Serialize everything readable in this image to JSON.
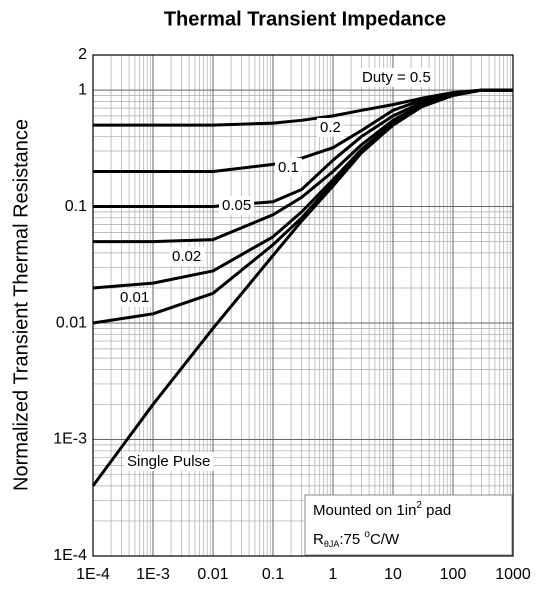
{
  "chart_data": {
    "type": "line",
    "title": "Thermal Transient Impedance",
    "y_label": "Normalized Transient Thermal Resistance",
    "x": [
      0.0001,
      0.001,
      0.01,
      0.1,
      0.3,
      1,
      3,
      10,
      30,
      100,
      300,
      1000
    ],
    "series": [
      {
        "name": "Duty = 0.5",
        "color": "#000000",
        "values": [
          0.5,
          0.5,
          0.5,
          0.52,
          0.55,
          0.6,
          0.67,
          0.75,
          0.85,
          0.95,
          1,
          1
        ]
      },
      {
        "name": "0.2",
        "color": "#000000",
        "values": [
          0.2,
          0.2,
          0.2,
          0.23,
          0.26,
          0.32,
          0.45,
          0.67,
          0.82,
          0.93,
          1,
          1
        ]
      },
      {
        "name": "0.1",
        "color": "#000000",
        "values": [
          0.1,
          0.1,
          0.1,
          0.11,
          0.14,
          0.25,
          0.4,
          0.6,
          0.78,
          0.92,
          1,
          1
        ]
      },
      {
        "name": "0.05",
        "color": "#000000",
        "values": [
          0.05,
          0.05,
          0.052,
          0.085,
          0.12,
          0.2,
          0.34,
          0.55,
          0.75,
          0.9,
          1,
          1
        ]
      },
      {
        "name": "0.02",
        "color": "#000000",
        "values": [
          0.02,
          0.022,
          0.028,
          0.055,
          0.09,
          0.17,
          0.31,
          0.52,
          0.73,
          0.9,
          1,
          1
        ]
      },
      {
        "name": "0.01",
        "color": "#000000",
        "values": [
          0.01,
          0.012,
          0.018,
          0.047,
          0.08,
          0.16,
          0.3,
          0.5,
          0.72,
          0.9,
          1,
          1
        ]
      },
      {
        "name": "Single Pulse",
        "color": "#000000",
        "values": [
          0.0004,
          0.002,
          0.009,
          0.038,
          0.075,
          0.15,
          0.29,
          0.5,
          0.72,
          0.9,
          1,
          1
        ]
      }
    ],
    "xlog": true,
    "ylog": true,
    "xlim": [
      0.0001,
      1000
    ],
    "ylim": [
      0.0001,
      2
    ],
    "xticks": [
      {
        "value": 0.0001,
        "label": "1E-4"
      },
      {
        "value": 0.001,
        "label": "1E-3"
      },
      0.01,
      0.1,
      1,
      10,
      100,
      1000
    ],
    "yticks": [
      {
        "value": 0.0001,
        "label": "1E-4"
      },
      {
        "value": 0.001,
        "label": "1E-3"
      },
      0.01,
      0.1,
      1,
      2
    ],
    "grid": true,
    "minor_grid": true,
    "annotation": {
      "line1": "Mounted on 1in",
      "line1_sup": "2",
      "line1_end": " pad",
      "line2": "R",
      "line2_sub": "θJA",
      "line2_mid": ":75 ",
      "line2_sup": "o",
      "line2_end": "C/W"
    }
  }
}
